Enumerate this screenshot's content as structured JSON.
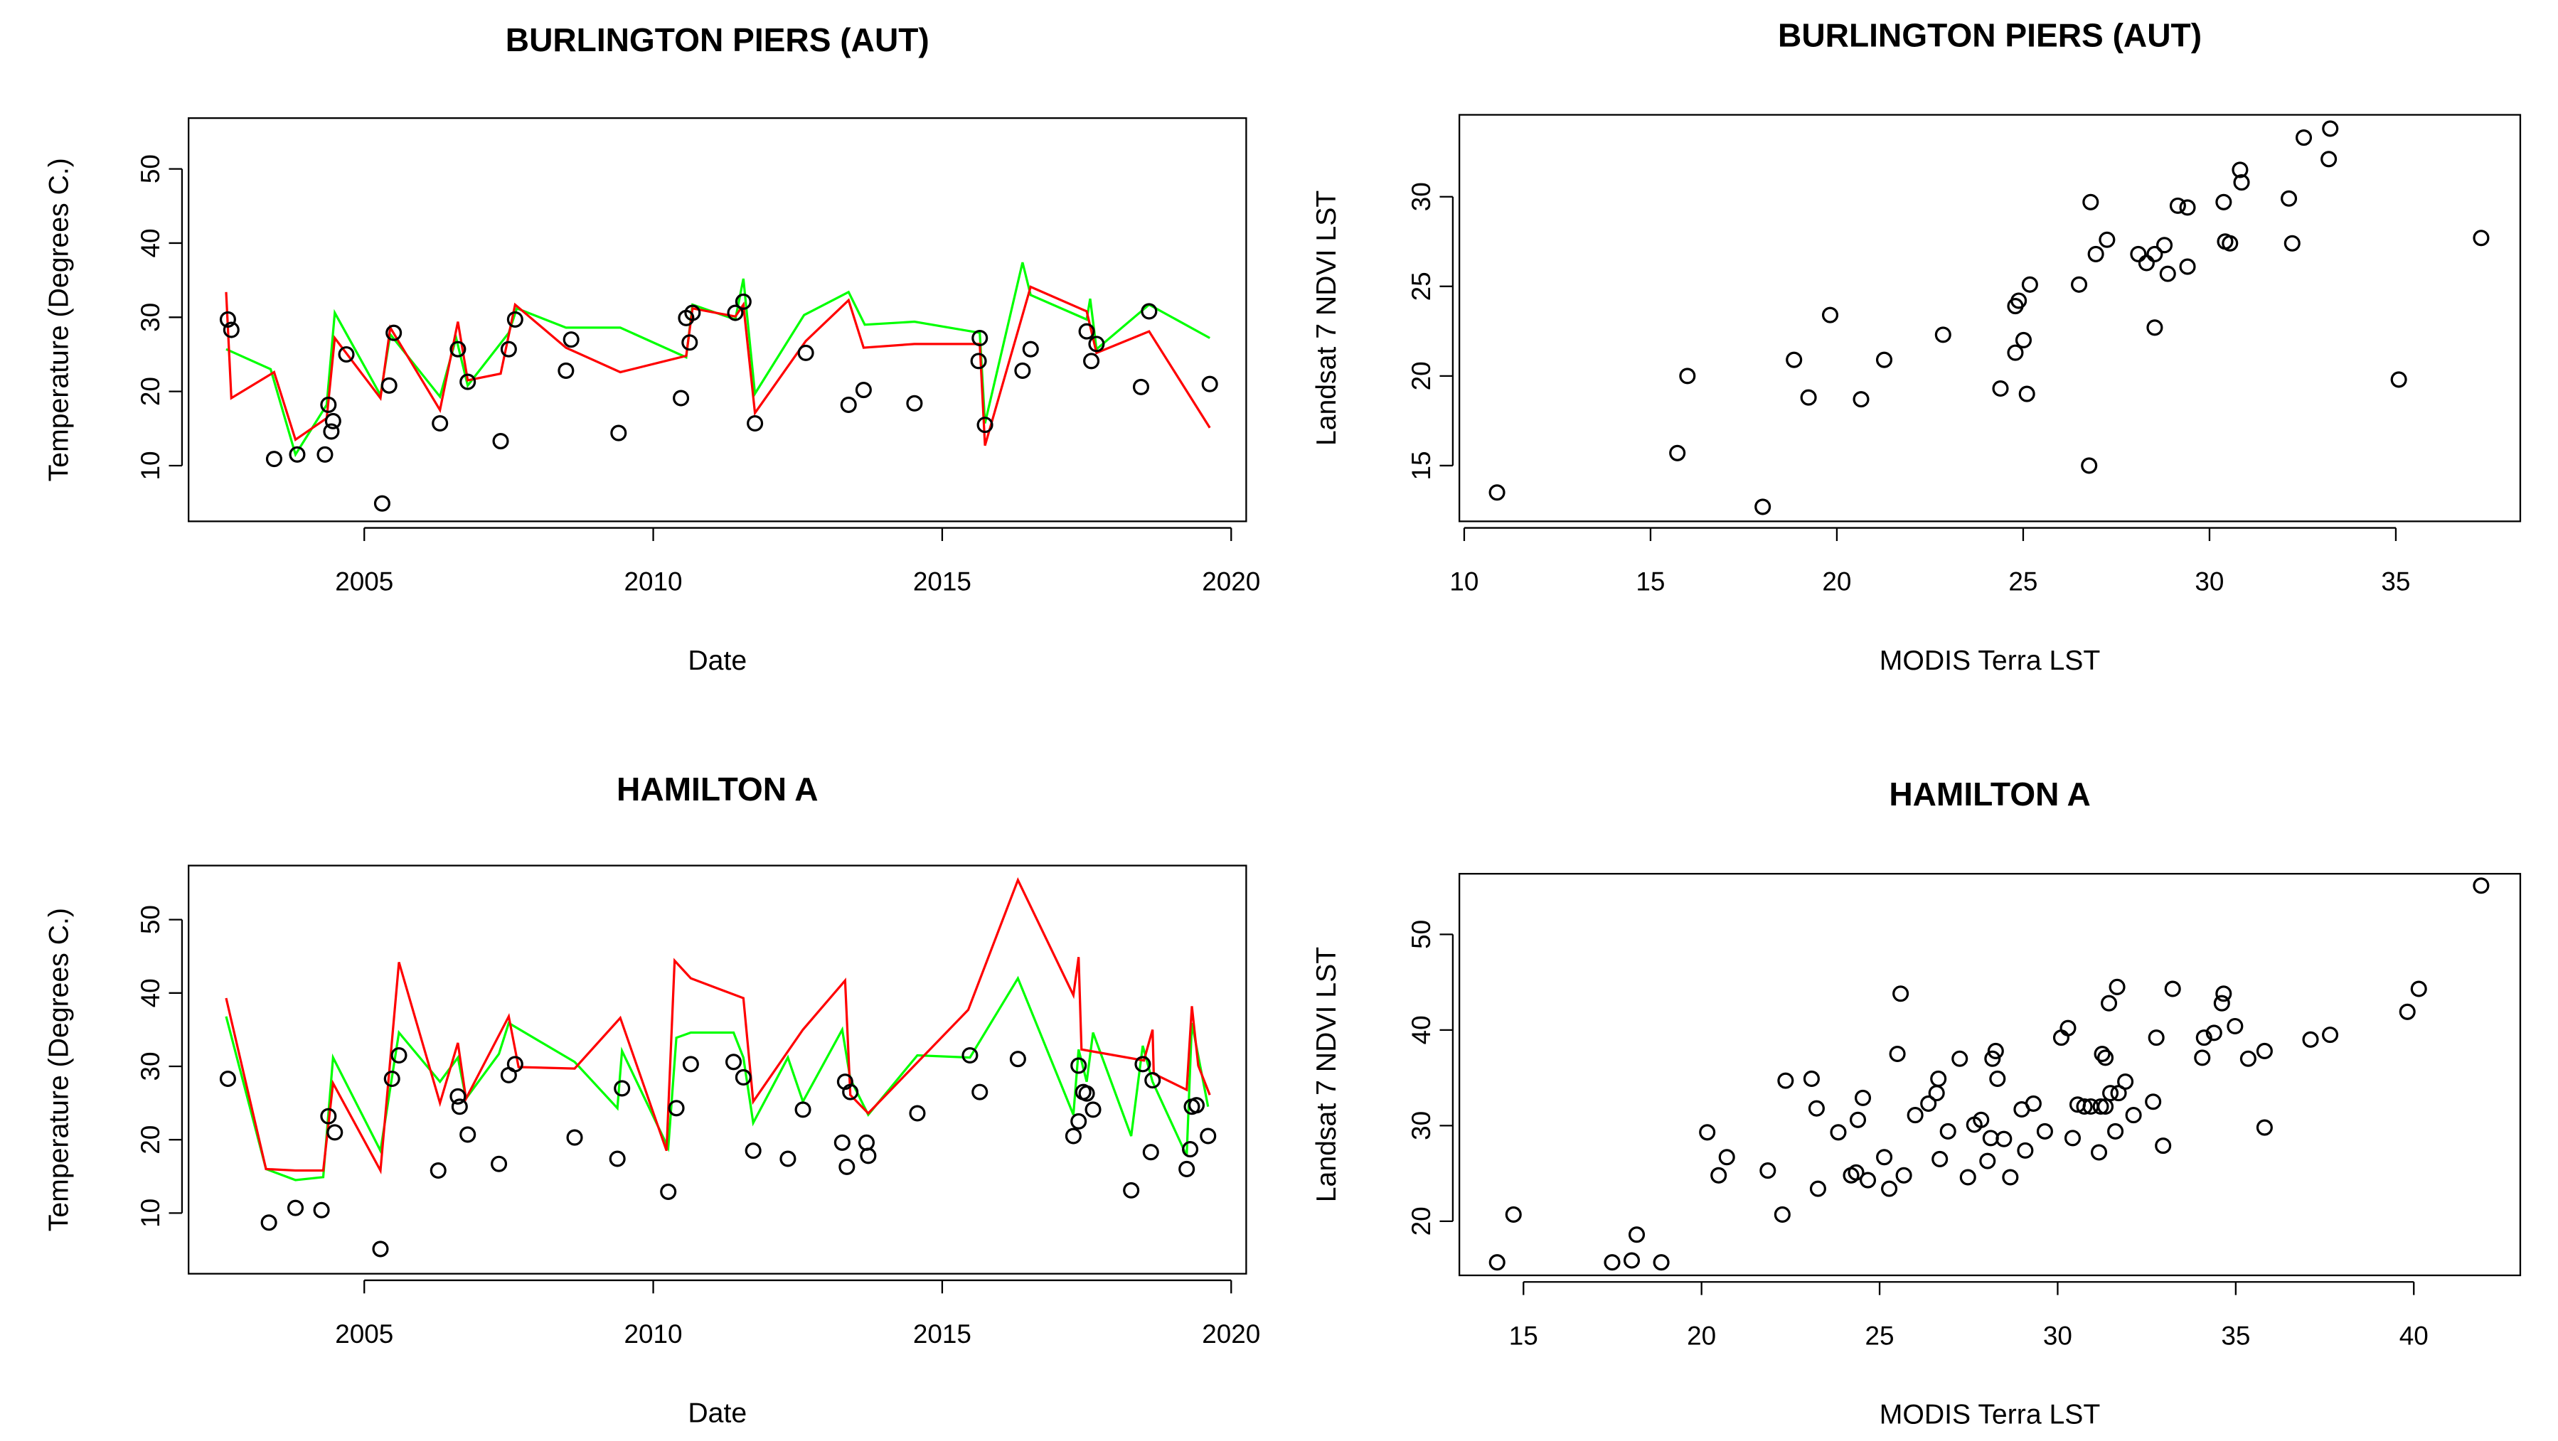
{
  "chart_data": [
    {
      "type": "line",
      "title": "BURLINGTON PIERS (AUT)",
      "xlabel": "Date",
      "ylabel": "Temperature (Degrees C.)",
      "xlim": [
        2001.96,
        2020.26
      ],
      "ylim": [
        2.49,
        56.85
      ],
      "xticks": [
        2005,
        2010,
        2015,
        2020
      ],
      "yticks": [
        10,
        20,
        30,
        40,
        50
      ],
      "series": [
        {
          "type": "line",
          "color": "#00ff00",
          "x": [
            2002.61,
            2003.38,
            2003.81,
            2004.35,
            2004.49,
            2005.28,
            2005.45,
            2006.31,
            2006.59,
            2006.79,
            2007.5,
            2007.64,
            2008.49,
            2009.43,
            2010.57,
            2010.68,
            2011.42,
            2011.56,
            2011.76,
            2012.61,
            2013.38,
            2013.66,
            2014.52,
            2015.65,
            2015.74,
            2016.39,
            2016.53,
            2017.5,
            2017.56,
            2017.67,
            2018.58,
            2019.63
          ],
          "values": [
            25.7,
            23.0,
            11.5,
            18.2,
            30.6,
            19.5,
            27.7,
            19.3,
            27.2,
            20.8,
            27.9,
            31.2,
            28.6,
            28.6,
            24.6,
            31.7,
            29.7,
            35.2,
            19.7,
            30.3,
            33.4,
            29.0,
            29.4,
            27.9,
            15.7,
            37.4,
            33.0,
            29.7,
            32.5,
            25.7,
            31.7,
            27.2
          ]
        },
        {
          "type": "line",
          "color": "#ff0000",
          "x": [
            2002.61,
            2002.7,
            2003.44,
            2003.81,
            2004.35,
            2004.49,
            2005.28,
            2005.45,
            2006.31,
            2006.62,
            2006.79,
            2007.36,
            2007.61,
            2008.49,
            2009.43,
            2010.57,
            2010.68,
            2011.42,
            2011.56,
            2011.76,
            2012.64,
            2013.38,
            2013.64,
            2014.52,
            2015.65,
            2015.74,
            2016.53,
            2017.5,
            2017.67,
            2018.58,
            2019.63
          ],
          "values": [
            33.4,
            19.1,
            22.6,
            13.5,
            16.4,
            27.2,
            19.1,
            28.6,
            17.5,
            29.4,
            21.5,
            22.4,
            31.7,
            25.9,
            22.6,
            24.8,
            31.2,
            30.1,
            31.7,
            17.1,
            26.8,
            32.3,
            25.9,
            26.4,
            26.4,
            12.7,
            34.1,
            30.8,
            25.2,
            28.1,
            15.1
          ]
        },
        {
          "type": "scatter",
          "color": "#000000",
          "x": [
            2002.64,
            2002.7,
            2003.44,
            2003.84,
            2004.32,
            2004.38,
            2004.46,
            2004.43,
            2004.69,
            2005.31,
            2005.43,
            2005.51,
            2006.31,
            2006.62,
            2006.79,
            2007.36,
            2007.5,
            2007.61,
            2008.49,
            2008.58,
            2009.4,
            2010.48,
            2010.57,
            2010.63,
            2010.68,
            2011.42,
            2011.56,
            2011.76,
            2012.64,
            2013.38,
            2013.64,
            2014.52,
            2015.65,
            2015.63,
            2015.74,
            2016.39,
            2016.53,
            2017.5,
            2017.58,
            2017.67,
            2018.44,
            2018.58,
            2019.63
          ],
          "values": [
            29.7,
            28.3,
            10.9,
            11.5,
            11.5,
            18.2,
            16.0,
            14.6,
            25.0,
            4.9,
            20.8,
            27.9,
            15.7,
            25.7,
            21.3,
            13.3,
            25.7,
            29.7,
            22.8,
            27.0,
            14.4,
            19.1,
            29.9,
            26.6,
            30.6,
            30.6,
            32.1,
            15.7,
            25.2,
            18.2,
            20.2,
            18.4,
            27.2,
            24.1,
            15.5,
            22.8,
            25.7,
            28.1,
            24.1,
            26.4,
            20.6,
            30.8,
            21.0
          ]
        }
      ]
    },
    {
      "type": "scatter",
      "title": "BURLINGTON PIERS (AUT)",
      "xlabel": "MODIS Terra LST",
      "ylabel": "Landsat 7 NDVI LST",
      "xlim": [
        9.87,
        38.34
      ],
      "ylim": [
        11.89,
        34.57
      ],
      "xticks": [
        10,
        15,
        20,
        25,
        30,
        35
      ],
      "yticks": [
        15,
        20,
        25,
        30
      ],
      "color": "#000000",
      "x": [
        10.88,
        15.72,
        15.99,
        18.01,
        18.85,
        19.24,
        19.82,
        20.65,
        21.27,
        22.85,
        24.39,
        24.79,
        24.79,
        24.88,
        25.01,
        25.1,
        25.18,
        26.5,
        26.77,
        26.81,
        26.95,
        27.25,
        28.09,
        28.31,
        28.53,
        28.53,
        28.79,
        28.88,
        29.15,
        29.41,
        29.41,
        30.38,
        30.42,
        30.55,
        30.82,
        30.86,
        32.13,
        32.22,
        32.53,
        33.2,
        33.24,
        35.08,
        37.29
      ],
      "values": [
        13.5,
        15.7,
        20.0,
        12.7,
        20.9,
        18.8,
        23.4,
        18.7,
        20.9,
        22.3,
        19.3,
        21.3,
        23.9,
        24.2,
        22.0,
        19.0,
        25.1,
        25.1,
        15.0,
        29.7,
        26.8,
        27.6,
        26.8,
        26.3,
        26.8,
        22.7,
        27.3,
        25.7,
        29.5,
        29.4,
        26.1,
        29.7,
        27.5,
        27.4,
        31.5,
        30.8,
        29.9,
        27.4,
        33.3,
        32.1,
        33.8,
        19.8,
        27.7
      ]
    },
    {
      "type": "line",
      "title": "HAMILTON A",
      "xlabel": "Date",
      "ylabel": "Temperature (Degrees C.)",
      "xlim": [
        2001.96,
        2020.26
      ],
      "ylim": [
        1.73,
        57.37
      ],
      "xticks": [
        2005,
        2010,
        2015,
        2020
      ],
      "yticks": [
        10,
        20,
        30,
        40,
        50
      ],
      "series": [
        {
          "type": "line",
          "color": "#00ff00",
          "x": [
            2002.61,
            2003.3,
            2003.81,
            2004.29,
            2004.46,
            2005.28,
            2005.6,
            2006.31,
            2006.62,
            2006.76,
            2007.33,
            2007.5,
            2008.64,
            2009.38,
            2009.46,
            2010.26,
            2010.4,
            2010.65,
            2011.39,
            2011.56,
            2011.73,
            2012.33,
            2012.59,
            2013.27,
            2013.41,
            2013.72,
            2014.57,
            2015.48,
            2016.31,
            2017.27,
            2017.36,
            2017.5,
            2017.61,
            2018.27,
            2018.47,
            2018.64,
            2019.23,
            2019.32,
            2019.6
          ],
          "values": [
            36.8,
            16.0,
            14.5,
            14.9,
            31.2,
            18.5,
            34.6,
            27.9,
            31.2,
            25.6,
            31.7,
            35.9,
            30.6,
            24.3,
            32.1,
            18.9,
            33.9,
            34.6,
            34.6,
            31.2,
            22.3,
            31.2,
            25.2,
            35.0,
            28.3,
            23.4,
            31.5,
            31.2,
            42.0,
            23.4,
            32.3,
            27.9,
            34.6,
            20.5,
            32.8,
            27.9,
            17.8,
            35.9,
            24.5
          ]
        },
        {
          "type": "line",
          "color": "#ff0000",
          "x": [
            2002.61,
            2003.3,
            2003.81,
            2004.29,
            2004.46,
            2005.28,
            2005.6,
            2006.31,
            2006.62,
            2006.76,
            2007.5,
            2007.67,
            2008.64,
            2009.43,
            2010.23,
            2010.37,
            2010.65,
            2011.56,
            2011.73,
            2012.59,
            2013.32,
            2013.41,
            2013.72,
            2015.45,
            2016.31,
            2017.27,
            2017.36,
            2017.41,
            2018.49,
            2018.64,
            2018.66,
            2019.23,
            2019.32,
            2019.43,
            2019.63
          ],
          "values": [
            39.3,
            16.0,
            15.8,
            15.8,
            27.7,
            15.8,
            44.2,
            25.0,
            33.2,
            25.6,
            36.8,
            29.9,
            29.7,
            36.6,
            18.5,
            44.4,
            42.0,
            39.3,
            25.2,
            35.0,
            41.7,
            26.1,
            23.6,
            37.7,
            55.4,
            39.7,
            44.9,
            32.3,
            30.8,
            35.0,
            29.0,
            26.8,
            38.2,
            30.1,
            26.1
          ]
        },
        {
          "type": "scatter",
          "color": "#000000",
          "x": [
            2002.64,
            2003.35,
            2003.81,
            2004.26,
            2004.38,
            2004.49,
            2005.28,
            2005.48,
            2005.6,
            2006.28,
            2006.62,
            2006.65,
            2006.79,
            2007.33,
            2007.5,
            2007.61,
            2008.64,
            2009.38,
            2009.46,
            2010.26,
            2010.4,
            2010.65,
            2011.39,
            2011.56,
            2011.73,
            2012.33,
            2012.59,
            2013.27,
            2013.35,
            2013.32,
            2013.41,
            2013.69,
            2013.72,
            2014.57,
            2015.48,
            2015.65,
            2016.31,
            2017.27,
            2017.36,
            2017.36,
            2017.44,
            2017.5,
            2017.61,
            2018.27,
            2018.47,
            2018.64,
            2018.61,
            2019.23,
            2019.29,
            2019.32,
            2019.4,
            2019.6
          ],
          "values": [
            28.3,
            8.7,
            10.7,
            10.4,
            23.2,
            21.0,
            5.1,
            28.3,
            31.5,
            15.8,
            25.9,
            24.5,
            20.7,
            16.7,
            28.8,
            30.3,
            20.3,
            17.4,
            27.0,
            12.9,
            24.3,
            30.3,
            30.6,
            28.5,
            18.5,
            17.4,
            24.1,
            19.6,
            16.3,
            27.9,
            26.5,
            19.6,
            17.8,
            23.6,
            31.5,
            26.5,
            31.0,
            20.5,
            22.5,
            30.1,
            26.5,
            26.3,
            24.1,
            13.1,
            30.3,
            28.1,
            18.3,
            16.0,
            18.7,
            24.5,
            24.7,
            20.5
          ]
        }
      ]
    },
    {
      "type": "scatter",
      "title": "HAMILTON A",
      "xlabel": "MODIS Terra LST",
      "ylabel": "Landsat 7 NDVI LST",
      "xlim": [
        13.2,
        42.99
      ],
      "ylim": [
        14.34,
        56.34
      ],
      "xticks": [
        15,
        20,
        25,
        30,
        35,
        40
      ],
      "yticks": [
        20,
        30,
        40,
        50
      ],
      "color": "#000000",
      "x": [
        14.26,
        14.72,
        17.49,
        18.04,
        18.18,
        18.87,
        20.16,
        20.48,
        20.71,
        21.86,
        22.27,
        22.36,
        23.09,
        23.23,
        23.27,
        23.84,
        24.2,
        24.34,
        24.39,
        24.53,
        24.67,
        25.13,
        25.27,
        25.5,
        25.59,
        25.68,
        26.0,
        26.37,
        26.6,
        26.65,
        26.69,
        26.92,
        27.25,
        27.48,
        27.66,
        27.85,
        28.03,
        28.12,
        28.17,
        28.26,
        28.31,
        28.49,
        28.67,
        28.99,
        29.09,
        29.32,
        29.64,
        30.1,
        30.29,
        30.42,
        30.56,
        30.75,
        30.93,
        31.16,
        31.21,
        31.25,
        31.34,
        31.34,
        31.44,
        31.48,
        31.62,
        31.67,
        31.71,
        31.9,
        32.13,
        32.77,
        32.68,
        32.96,
        33.23,
        34.06,
        34.11,
        34.39,
        34.61,
        34.66,
        34.98,
        35.35,
        35.81,
        35.81,
        37.1,
        37.65,
        39.82,
        40.14,
        41.89
      ],
      "values": [
        15.7,
        20.7,
        15.7,
        15.9,
        18.6,
        15.7,
        29.3,
        24.8,
        26.7,
        25.3,
        20.7,
        34.7,
        34.9,
        31.8,
        23.4,
        29.3,
        24.8,
        25.1,
        30.6,
        32.9,
        24.3,
        26.7,
        23.4,
        37.5,
        43.8,
        24.8,
        31.1,
        32.3,
        33.4,
        34.9,
        26.5,
        29.4,
        37.0,
        24.6,
        30.1,
        30.6,
        26.3,
        28.7,
        37.0,
        37.8,
        34.9,
        28.6,
        24.6,
        31.7,
        27.4,
        32.3,
        29.4,
        39.2,
        40.2,
        28.7,
        32.2,
        32.0,
        32.0,
        27.2,
        32.0,
        37.5,
        37.1,
        32.0,
        42.8,
        33.4,
        29.4,
        44.5,
        33.4,
        34.6,
        31.1,
        39.2,
        32.5,
        27.9,
        44.3,
        37.1,
        39.2,
        39.7,
        42.8,
        43.8,
        40.4,
        37.0,
        37.8,
        29.8,
        39.0,
        39.5,
        41.9,
        44.3,
        55.1
      ]
    }
  ]
}
